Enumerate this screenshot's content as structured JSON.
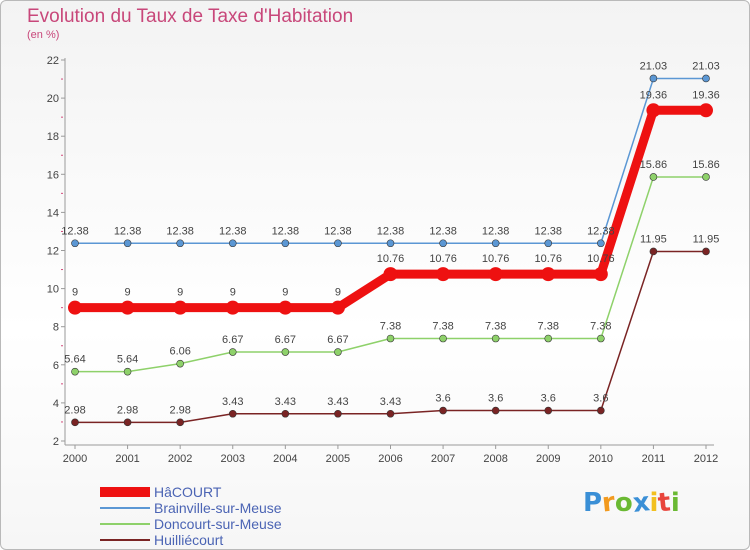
{
  "header": {
    "title": "Evolution du Taux de Taxe d'Habitation",
    "subtitle": "(en %)"
  },
  "chart_data": {
    "type": "line",
    "title": "Evolution du Taux de Taxe d'Habitation",
    "ylabel": "(en %)",
    "xlabel": "",
    "categories": [
      "2000",
      "2001",
      "2002",
      "2003",
      "2004",
      "2005",
      "2006",
      "2007",
      "2008",
      "2009",
      "2010",
      "2011",
      "2012"
    ],
    "ylim": [
      2,
      22
    ],
    "yticks": [
      2,
      4,
      6,
      8,
      10,
      12,
      14,
      16,
      18,
      20,
      22
    ],
    "series": [
      {
        "name": "Brainville-sur-Meuse",
        "color": "#5b97d4",
        "values": [
          12.38,
          12.38,
          12.38,
          12.38,
          12.38,
          12.38,
          12.38,
          12.38,
          12.38,
          12.38,
          12.38,
          21.03,
          21.03
        ],
        "labels": [
          "12.38",
          "12.38",
          "12.38",
          "12.38",
          "12.38",
          "12.38",
          "12.38",
          "12.38",
          "12.38",
          "12.38",
          "12.38",
          "21.03",
          "21.03"
        ]
      },
      {
        "name": "Doncourt-sur-Meuse",
        "color": "#8ed16a",
        "values": [
          5.64,
          5.64,
          6.06,
          6.67,
          6.67,
          6.67,
          7.38,
          7.38,
          7.38,
          7.38,
          7.38,
          15.86,
          15.86
        ],
        "labels": [
          "5.64",
          "5.64",
          "6.06",
          "6.67",
          "6.67",
          "6.67",
          "7.38",
          "7.38",
          "7.38",
          "7.38",
          "7.38",
          "15.86",
          "15.86"
        ]
      },
      {
        "name": "Huilliécourt",
        "color": "#7a2424",
        "values": [
          2.98,
          2.98,
          2.98,
          3.43,
          3.43,
          3.43,
          3.43,
          3.6,
          3.6,
          3.6,
          3.6,
          11.95,
          11.95
        ],
        "labels": [
          "2.98",
          "2.98",
          "2.98",
          "3.43",
          "3.43",
          "3.43",
          "3.43",
          "3.6",
          "3.6",
          "3.6",
          "3.6",
          "11.95",
          "11.95"
        ]
      },
      {
        "name": "HâCOURT",
        "color": "#ee1111",
        "values": [
          9,
          9,
          9,
          9,
          9,
          9,
          10.76,
          10.76,
          10.76,
          10.76,
          10.76,
          19.36,
          19.36
        ],
        "labels": [
          "9",
          "9",
          "9",
          "9",
          "9",
          "9",
          "10.76",
          "10.76",
          "10.76",
          "10.76",
          "10.76",
          "19.36",
          "19.36"
        ]
      }
    ],
    "legend_order": [
      "HâCOURT",
      "Brainville-sur-Meuse",
      "Doncourt-sur-Meuse",
      "Huilliécourt"
    ],
    "legend_position": "bottom-left",
    "grid": false
  },
  "logo": {
    "letters": [
      "P",
      "r",
      "o",
      "x",
      "i",
      "t",
      "i"
    ],
    "colors": [
      "#3a8fd6",
      "#f29a1f",
      "#6ab933",
      "#3a8fd6",
      "#f2c01f",
      "#e8453c",
      "#6ab933"
    ]
  }
}
